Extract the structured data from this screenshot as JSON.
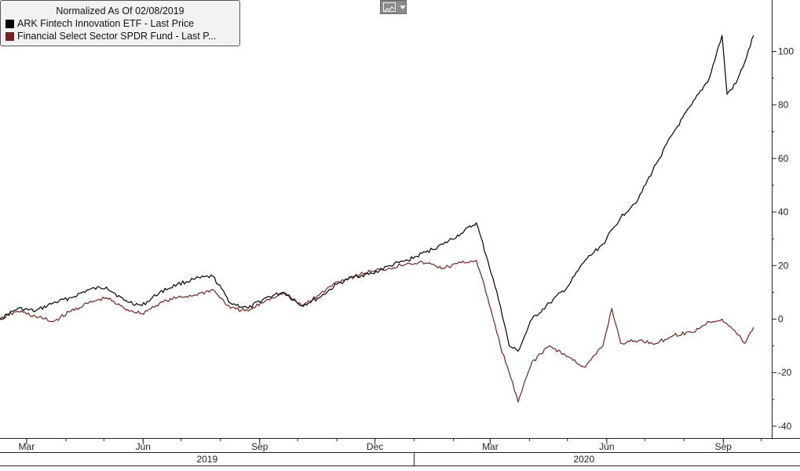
{
  "legend": {
    "title": "Normalized As Of 02/08/2019",
    "items": [
      {
        "label": "ARK Fintech Innovation ETF - Last Price",
        "color": "#000000"
      },
      {
        "label": "Financial Select Sector SPDR Fund - Last P...",
        "color": "#7a1f1f"
      }
    ]
  },
  "toolbar": {
    "chart_type_icon": "line-chart-icon",
    "dropdown_icon": "chevron-down-icon"
  },
  "chart_data": {
    "type": "line",
    "title": "Normalized As Of 02/08/2019",
    "ylim": [
      -45,
      115
    ],
    "yticks": [
      100,
      80,
      60,
      40,
      20,
      0,
      -20,
      -40
    ],
    "ytick_labels": [
      "100",
      "80",
      "60",
      "40",
      "20",
      "0",
      "-20",
      "-40"
    ],
    "x_range": [
      "2019-02-08",
      "2020-09-25"
    ],
    "xticks": [
      {
        "date": "2019-03-01",
        "label": "Mar"
      },
      {
        "date": "2019-06-01",
        "label": "Jun"
      },
      {
        "date": "2019-09-01",
        "label": "Sep"
      },
      {
        "date": "2019-12-01",
        "label": "Dec"
      },
      {
        "date": "2020-03-01",
        "label": "Mar"
      },
      {
        "date": "2020-06-01",
        "label": "Jun"
      },
      {
        "date": "2020-09-01",
        "label": "Sep"
      }
    ],
    "year_labels": [
      {
        "label": "2019",
        "from": "2019-02-08",
        "to": "2020-01-01"
      },
      {
        "label": "2020",
        "from": "2020-01-01",
        "to": "2020-09-25"
      }
    ],
    "grid": false,
    "legend_position": "top-left",
    "series": [
      {
        "name": "ARK Fintech Innovation ETF - Last Price",
        "color": "#000000",
        "points": [
          [
            "2019-02-08",
            0
          ],
          [
            "2019-02-22",
            4
          ],
          [
            "2019-03-08",
            3
          ],
          [
            "2019-03-22",
            6
          ],
          [
            "2019-04-05",
            8
          ],
          [
            "2019-04-19",
            11
          ],
          [
            "2019-05-03",
            12
          ],
          [
            "2019-05-17",
            7
          ],
          [
            "2019-05-31",
            5
          ],
          [
            "2019-06-14",
            10
          ],
          [
            "2019-06-28",
            13
          ],
          [
            "2019-07-12",
            15
          ],
          [
            "2019-07-26",
            16
          ],
          [
            "2019-08-09",
            6
          ],
          [
            "2019-08-23",
            4
          ],
          [
            "2019-09-06",
            8
          ],
          [
            "2019-09-20",
            10
          ],
          [
            "2019-10-04",
            5
          ],
          [
            "2019-10-18",
            8
          ],
          [
            "2019-11-01",
            13
          ],
          [
            "2019-11-15",
            16
          ],
          [
            "2019-11-29",
            17
          ],
          [
            "2019-12-13",
            20
          ],
          [
            "2019-12-27",
            22
          ],
          [
            "2020-01-10",
            25
          ],
          [
            "2020-01-24",
            28
          ],
          [
            "2020-02-07",
            32
          ],
          [
            "2020-02-19",
            36
          ],
          [
            "2020-02-28",
            22
          ],
          [
            "2020-03-09",
            5
          ],
          [
            "2020-03-16",
            -10
          ],
          [
            "2020-03-23",
            -12
          ],
          [
            "2020-04-03",
            0
          ],
          [
            "2020-04-17",
            6
          ],
          [
            "2020-05-01",
            12
          ],
          [
            "2020-05-15",
            22
          ],
          [
            "2020-05-29",
            28
          ],
          [
            "2020-06-12",
            38
          ],
          [
            "2020-06-26",
            45
          ],
          [
            "2020-07-10",
            58
          ],
          [
            "2020-07-24",
            70
          ],
          [
            "2020-08-07",
            80
          ],
          [
            "2020-08-21",
            90
          ],
          [
            "2020-08-31",
            106
          ],
          [
            "2020-09-04",
            84
          ],
          [
            "2020-09-11",
            88
          ],
          [
            "2020-09-18",
            96
          ],
          [
            "2020-09-25",
            106
          ]
        ]
      },
      {
        "name": "Financial Select Sector SPDR Fund - Last P...",
        "color": "#7a1f1f",
        "points": [
          [
            "2019-02-08",
            0
          ],
          [
            "2019-02-22",
            3
          ],
          [
            "2019-03-08",
            1
          ],
          [
            "2019-03-22",
            -1
          ],
          [
            "2019-04-05",
            3
          ],
          [
            "2019-04-19",
            6
          ],
          [
            "2019-05-03",
            8
          ],
          [
            "2019-05-17",
            4
          ],
          [
            "2019-05-31",
            2
          ],
          [
            "2019-06-14",
            6
          ],
          [
            "2019-06-28",
            8
          ],
          [
            "2019-07-12",
            9
          ],
          [
            "2019-07-26",
            11
          ],
          [
            "2019-08-09",
            4
          ],
          [
            "2019-08-23",
            3
          ],
          [
            "2019-09-06",
            7
          ],
          [
            "2019-09-20",
            10
          ],
          [
            "2019-10-04",
            5
          ],
          [
            "2019-10-18",
            9
          ],
          [
            "2019-11-01",
            14
          ],
          [
            "2019-11-15",
            16
          ],
          [
            "2019-11-29",
            18
          ],
          [
            "2019-12-13",
            19
          ],
          [
            "2019-12-27",
            21
          ],
          [
            "2020-01-10",
            21
          ],
          [
            "2020-01-24",
            19
          ],
          [
            "2020-02-07",
            21
          ],
          [
            "2020-02-19",
            22
          ],
          [
            "2020-02-28",
            8
          ],
          [
            "2020-03-09",
            -10
          ],
          [
            "2020-03-16",
            -20
          ],
          [
            "2020-03-23",
            -31
          ],
          [
            "2020-04-03",
            -16
          ],
          [
            "2020-04-17",
            -10
          ],
          [
            "2020-05-01",
            -14
          ],
          [
            "2020-05-15",
            -18
          ],
          [
            "2020-05-29",
            -10
          ],
          [
            "2020-06-05",
            4
          ],
          [
            "2020-06-12",
            -9
          ],
          [
            "2020-06-26",
            -8
          ],
          [
            "2020-07-10",
            -9
          ],
          [
            "2020-07-24",
            -6
          ],
          [
            "2020-08-07",
            -5
          ],
          [
            "2020-08-21",
            -1
          ],
          [
            "2020-08-31",
            0
          ],
          [
            "2020-09-11",
            -5
          ],
          [
            "2020-09-18",
            -9
          ],
          [
            "2020-09-25",
            -3
          ]
        ]
      }
    ]
  }
}
